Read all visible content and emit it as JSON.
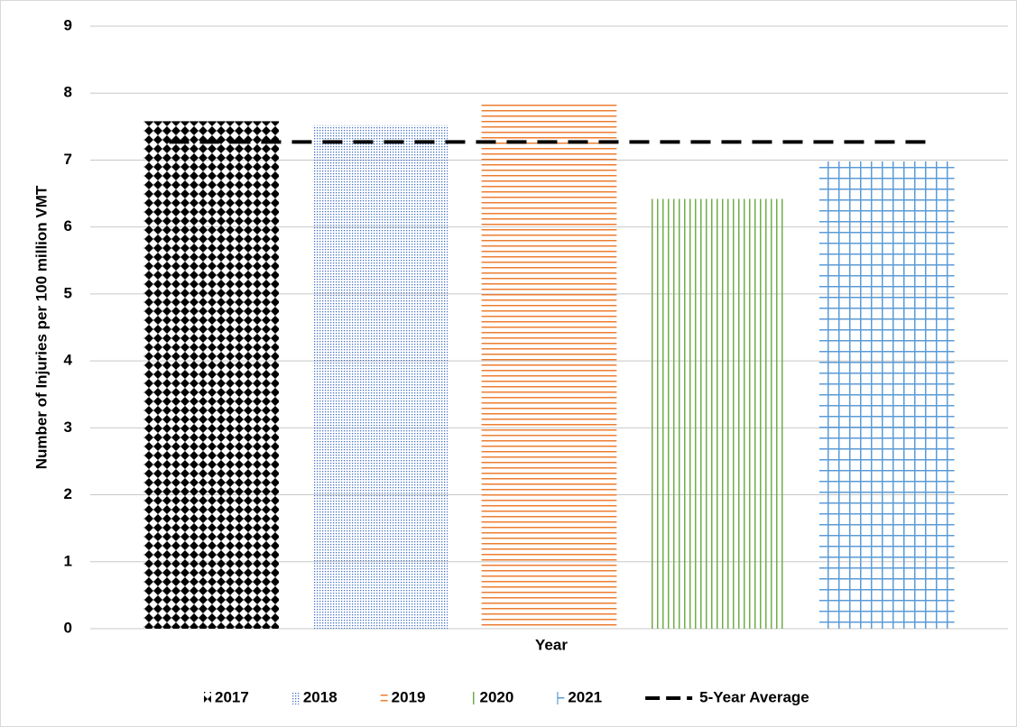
{
  "chart_data": {
    "type": "bar",
    "y_label": "Number of Injuries per 100 million VMT",
    "x_label": "Year",
    "categories": [
      null
    ],
    "series": [
      {
        "name": "2017",
        "color": "#000000",
        "pattern": "diamond",
        "values": [
          7.58
        ]
      },
      {
        "name": "2018",
        "color": "#4472c4",
        "pattern": "dots",
        "values": [
          7.52
        ]
      },
      {
        "name": "2019",
        "color": "#ed7d31",
        "pattern": "hlines",
        "values": [
          7.83
        ]
      },
      {
        "name": "2020",
        "color": "#70ad47",
        "pattern": "vlines",
        "values": [
          6.42
        ]
      },
      {
        "name": "2021",
        "color": "#5b9bd5",
        "pattern": "grid",
        "values": [
          6.98
        ]
      },
      {
        "name": "5-Year Average",
        "color": "#000000",
        "type": "line",
        "dashed": true,
        "values": [
          7.27
        ]
      }
    ],
    "ylim": [
      0,
      9
    ],
    "yticks": [
      0,
      1,
      2,
      3,
      4,
      5,
      6,
      7,
      8,
      9
    ],
    "grid": true,
    "legend": "bottom"
  }
}
